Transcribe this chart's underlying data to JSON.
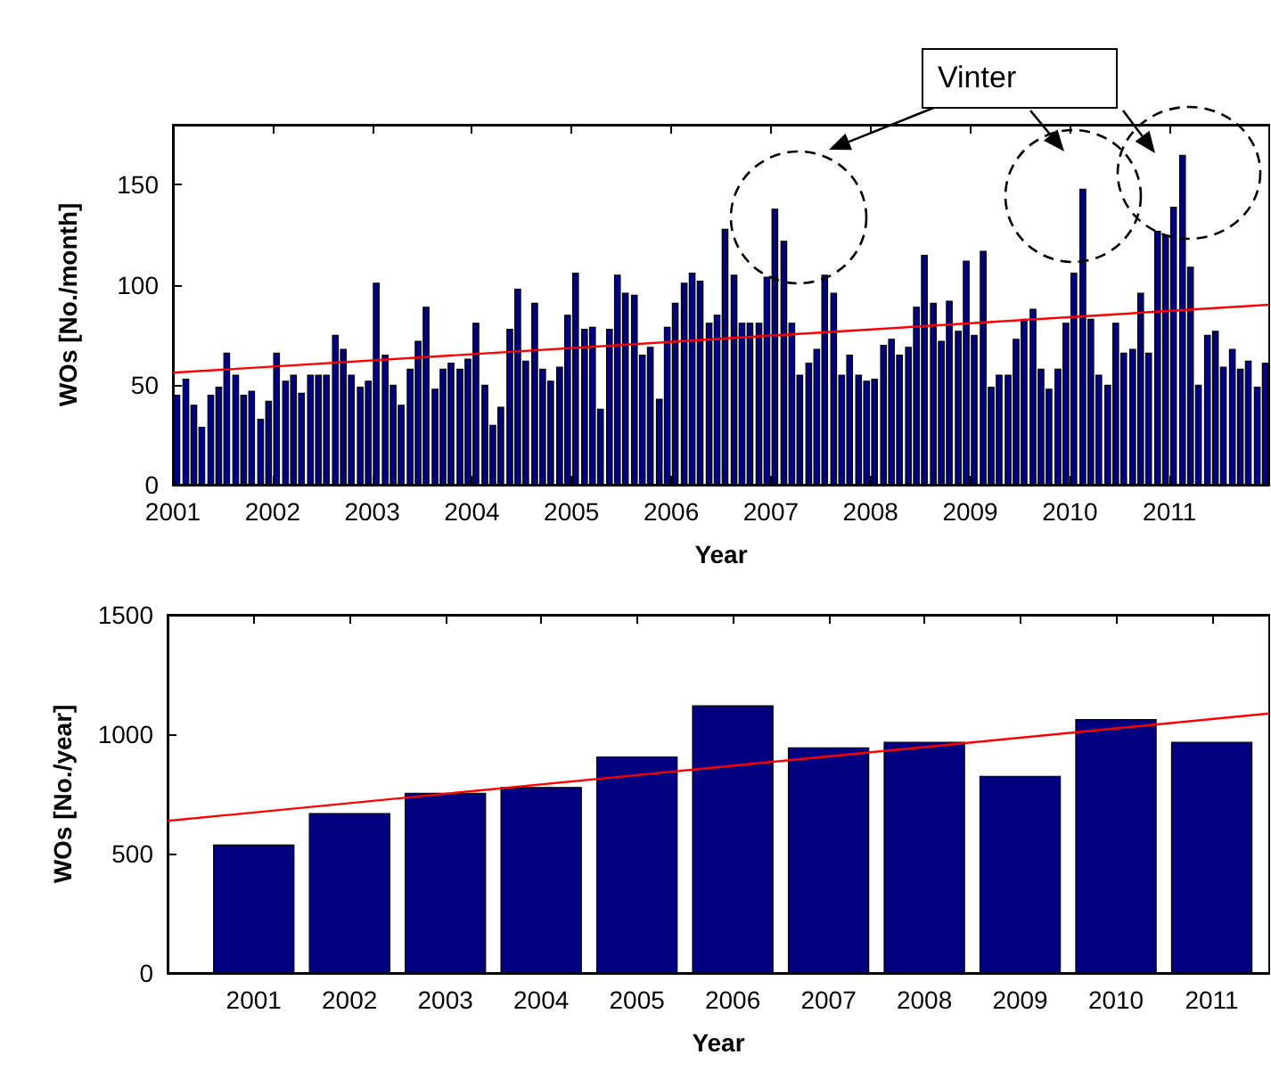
{
  "chart_data": [
    {
      "type": "bar",
      "xlabel": "Year",
      "ylabel": "WOs [No./month]",
      "annotations": [
        "Vinter"
      ],
      "xlim": [
        2001,
        2012
      ],
      "xticks": [
        2001,
        2002,
        2003,
        2004,
        2005,
        2006,
        2007,
        2008,
        2009,
        2010,
        2011
      ],
      "ylim": [
        0,
        180
      ],
      "yticks": [
        0,
        50,
        100,
        150
      ],
      "x": [
        2001.04,
        2001.13,
        2001.21,
        2001.29,
        2001.38,
        2001.46,
        2001.54,
        2001.63,
        2001.71,
        2001.79,
        2001.88,
        2001.96,
        2002.04,
        2002.13,
        2002.21,
        2002.29,
        2002.38,
        2002.46,
        2002.54,
        2002.63,
        2002.71,
        2002.79,
        2002.88,
        2002.96,
        2003.04,
        2003.13,
        2003.21,
        2003.29,
        2003.38,
        2003.46,
        2003.54,
        2003.63,
        2003.71,
        2003.79,
        2003.88,
        2003.96,
        2004.04,
        2004.13,
        2004.21,
        2004.29,
        2004.38,
        2004.46,
        2004.54,
        2004.63,
        2004.71,
        2004.79,
        2004.88,
        2004.96,
        2005.04,
        2005.13,
        2005.21,
        2005.29,
        2005.38,
        2005.46,
        2005.54,
        2005.63,
        2005.71,
        2005.79,
        2005.88,
        2005.96,
        2006.04,
        2006.13,
        2006.21,
        2006.29,
        2006.38,
        2006.46,
        2006.54,
        2006.63,
        2006.71,
        2006.79,
        2006.88,
        2006.96,
        2007.04,
        2007.13,
        2007.21,
        2007.29,
        2007.38,
        2007.46,
        2007.54,
        2007.63,
        2007.71,
        2007.79,
        2007.88,
        2007.96,
        2008.04,
        2008.13,
        2008.21,
        2008.29,
        2008.38,
        2008.46,
        2008.54,
        2008.63,
        2008.71,
        2008.79,
        2008.88,
        2008.96,
        2009.04,
        2009.13,
        2009.21,
        2009.29,
        2009.38,
        2009.46,
        2009.54,
        2009.63,
        2009.71,
        2009.79,
        2009.88,
        2009.96,
        2010.04,
        2010.13,
        2010.21,
        2010.29,
        2010.38,
        2010.46,
        2010.54,
        2010.63,
        2010.71,
        2010.79,
        2010.88,
        2010.96,
        2011.04,
        2011.13,
        2011.21,
        2011.29,
        2011.38,
        2011.46,
        2011.54,
        2011.63,
        2011.71,
        2011.79,
        2011.88,
        2011.96
      ],
      "series": [
        {
          "color": "#000080",
          "values": [
            45,
            53,
            40,
            29,
            45,
            49,
            66,
            55,
            45,
            47,
            33,
            42,
            66,
            52,
            55,
            46,
            55,
            55,
            55,
            75,
            68,
            55,
            49,
            52,
            101,
            65,
            50,
            40,
            58,
            72,
            89,
            48,
            58,
            61,
            58,
            63,
            81,
            50,
            30,
            39,
            78,
            98,
            62,
            91,
            58,
            52,
            59,
            85,
            106,
            78,
            79,
            38,
            78,
            105,
            96,
            95,
            65,
            69,
            43,
            79,
            91,
            101,
            106,
            102,
            81,
            85,
            128,
            105,
            81,
            81,
            81,
            104,
            138,
            122,
            81,
            55,
            61,
            68,
            105,
            96,
            55,
            65,
            55,
            52,
            53,
            70,
            73,
            65,
            69,
            89,
            115,
            91,
            72,
            92,
            77,
            112,
            75,
            117,
            49,
            55,
            55,
            73,
            83,
            88,
            58,
            48,
            58,
            81,
            106,
            148,
            83,
            55,
            50,
            81,
            66,
            68,
            96,
            66,
            127,
            125,
            139,
            165,
            109,
            50,
            75,
            77,
            59,
            68,
            58,
            62,
            49,
            61
          ]
        },
        {
          "type": "line",
          "color": "#ff0000",
          "x": [
            2001,
            2012
          ],
          "values": [
            56,
            90
          ]
        }
      ]
    },
    {
      "type": "bar",
      "xlabel": "Year",
      "ylabel": "WOs [No./year]",
      "xlim": [
        2000.1,
        2011.6
      ],
      "xticks": [
        2001,
        2002,
        2003,
        2004,
        2005,
        2006,
        2007,
        2008,
        2009,
        2010,
        2011
      ],
      "ylim": [
        0,
        1500
      ],
      "yticks": [
        0,
        500,
        1000,
        1500
      ],
      "x": [
        2001,
        2002,
        2003,
        2004,
        2005,
        2006,
        2007,
        2008,
        2009,
        2010,
        2011
      ],
      "series": [
        {
          "color": "#000080",
          "values": [
            538,
            670,
            755,
            779,
            907,
            1121,
            945,
            968,
            826,
            1063,
            968
          ]
        },
        {
          "type": "line",
          "color": "#ff0000",
          "x": [
            2000.1,
            2011.6
          ],
          "values": [
            637,
            1087
          ]
        }
      ]
    }
  ]
}
